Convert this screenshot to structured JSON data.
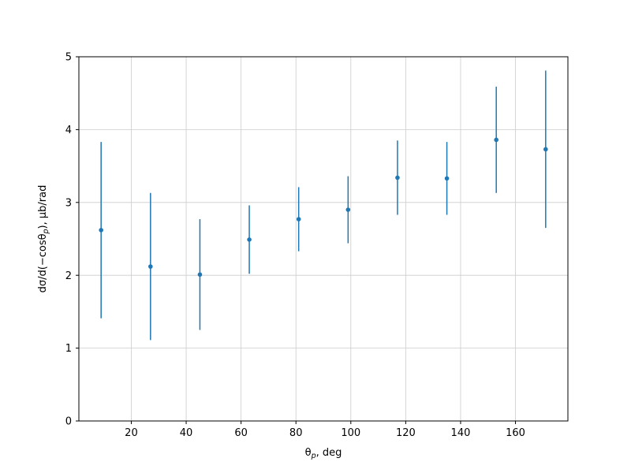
{
  "figure": {
    "background": "#ffffff"
  },
  "chart_data": {
    "type": "scatter",
    "title": "",
    "xlabel": "θ_p, deg",
    "ylabel": "dσ/d(−cosθ_p), μb/rad",
    "x": [
      9,
      27,
      45,
      63,
      81,
      99,
      117,
      135,
      153,
      171
    ],
    "y": [
      2.62,
      2.12,
      2.01,
      2.49,
      2.77,
      2.9,
      3.34,
      3.33,
      3.86,
      3.73
    ],
    "yerr": [
      1.21,
      1.01,
      0.76,
      0.47,
      0.44,
      0.46,
      0.51,
      0.5,
      0.73,
      1.08
    ],
    "xlim": [
      0.9,
      179.1
    ],
    "ylim": [
      0,
      5
    ],
    "xticks": [
      20,
      40,
      60,
      80,
      100,
      120,
      140,
      160
    ],
    "yticks": [
      0,
      1,
      2,
      3,
      4,
      5
    ],
    "grid": true,
    "legend": "none",
    "marker_color": "#1f77b4",
    "errorbar_color": "#1f77b4",
    "grid_color": "#cccccc",
    "spine_color": "#000000"
  }
}
